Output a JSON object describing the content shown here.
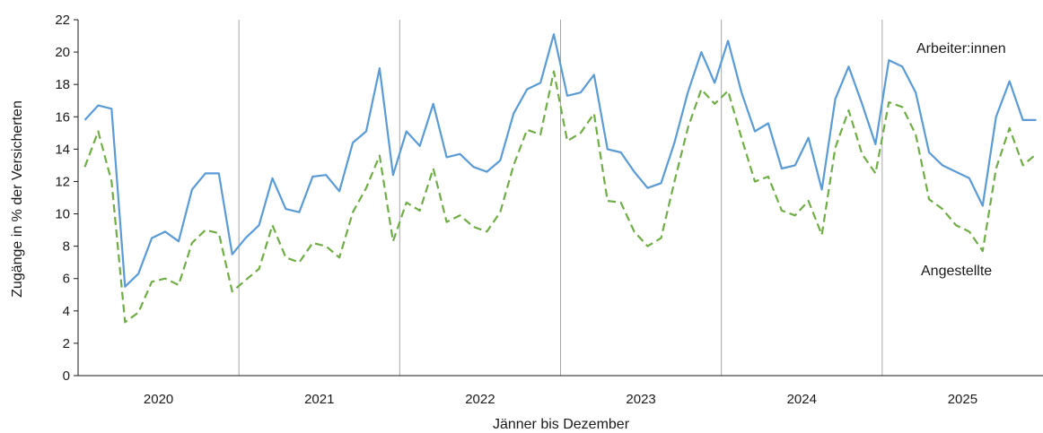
{
  "chart_data": {
    "type": "line",
    "title": "",
    "xlabel": "Jänner bis Dezember",
    "ylabel": "Zugänge in % der Versicherten",
    "ylim": [
      0,
      22
    ],
    "yticks": [
      0,
      2,
      4,
      6,
      8,
      10,
      12,
      14,
      16,
      18,
      20,
      22
    ],
    "year_labels": [
      "2020",
      "2021",
      "2022",
      "2023",
      "2024",
      "2025"
    ],
    "months_per_year": 12,
    "grid": false,
    "year_separators": true,
    "series": [
      {
        "name": "Arbeiter:innen",
        "color": "#5b9bd5",
        "style": "solid",
        "values": [
          15.8,
          16.7,
          16.5,
          5.5,
          6.3,
          8.5,
          8.9,
          8.3,
          11.5,
          12.5,
          12.5,
          7.5,
          8.5,
          9.3,
          12.2,
          10.3,
          10.1,
          12.3,
          12.4,
          11.4,
          14.4,
          15.1,
          19.0,
          12.4,
          15.1,
          14.2,
          16.8,
          13.5,
          13.7,
          12.9,
          12.6,
          13.3,
          16.2,
          17.7,
          18.1,
          21.1,
          17.3,
          17.5,
          18.6,
          14.0,
          13.8,
          12.6,
          11.6,
          11.9,
          14.4,
          17.5,
          20.0,
          18.1,
          20.7,
          17.5,
          15.1,
          15.6,
          12.8,
          13.0,
          14.7,
          11.5,
          17.1,
          19.1,
          16.8,
          14.3,
          19.5,
          19.1,
          17.5,
          13.8,
          13.0,
          12.6,
          12.2,
          10.5,
          16.0,
          18.2,
          15.8,
          15.8
        ]
      },
      {
        "name": "Angestellte",
        "color": "#70ad47",
        "style": "dashed",
        "values": [
          12.9,
          15.1,
          12.0,
          3.3,
          3.9,
          5.8,
          6.0,
          5.6,
          8.2,
          9.0,
          8.8,
          5.2,
          5.9,
          6.6,
          9.3,
          7.3,
          7.0,
          8.2,
          8.0,
          7.3,
          10.1,
          11.6,
          13.6,
          8.3,
          10.7,
          10.2,
          12.8,
          9.5,
          9.9,
          9.2,
          8.9,
          10.1,
          13.0,
          15.2,
          14.9,
          18.8,
          14.5,
          15.0,
          16.2,
          10.8,
          10.7,
          8.9,
          8.0,
          8.5,
          12.0,
          15.3,
          17.7,
          16.8,
          17.6,
          14.7,
          12.0,
          12.3,
          10.2,
          9.9,
          10.8,
          8.7,
          14.1,
          16.4,
          13.7,
          12.5,
          16.9,
          16.6,
          14.9,
          10.9,
          10.3,
          9.3,
          8.9,
          7.7,
          12.8,
          15.3,
          13.0,
          13.7
        ]
      }
    ]
  }
}
